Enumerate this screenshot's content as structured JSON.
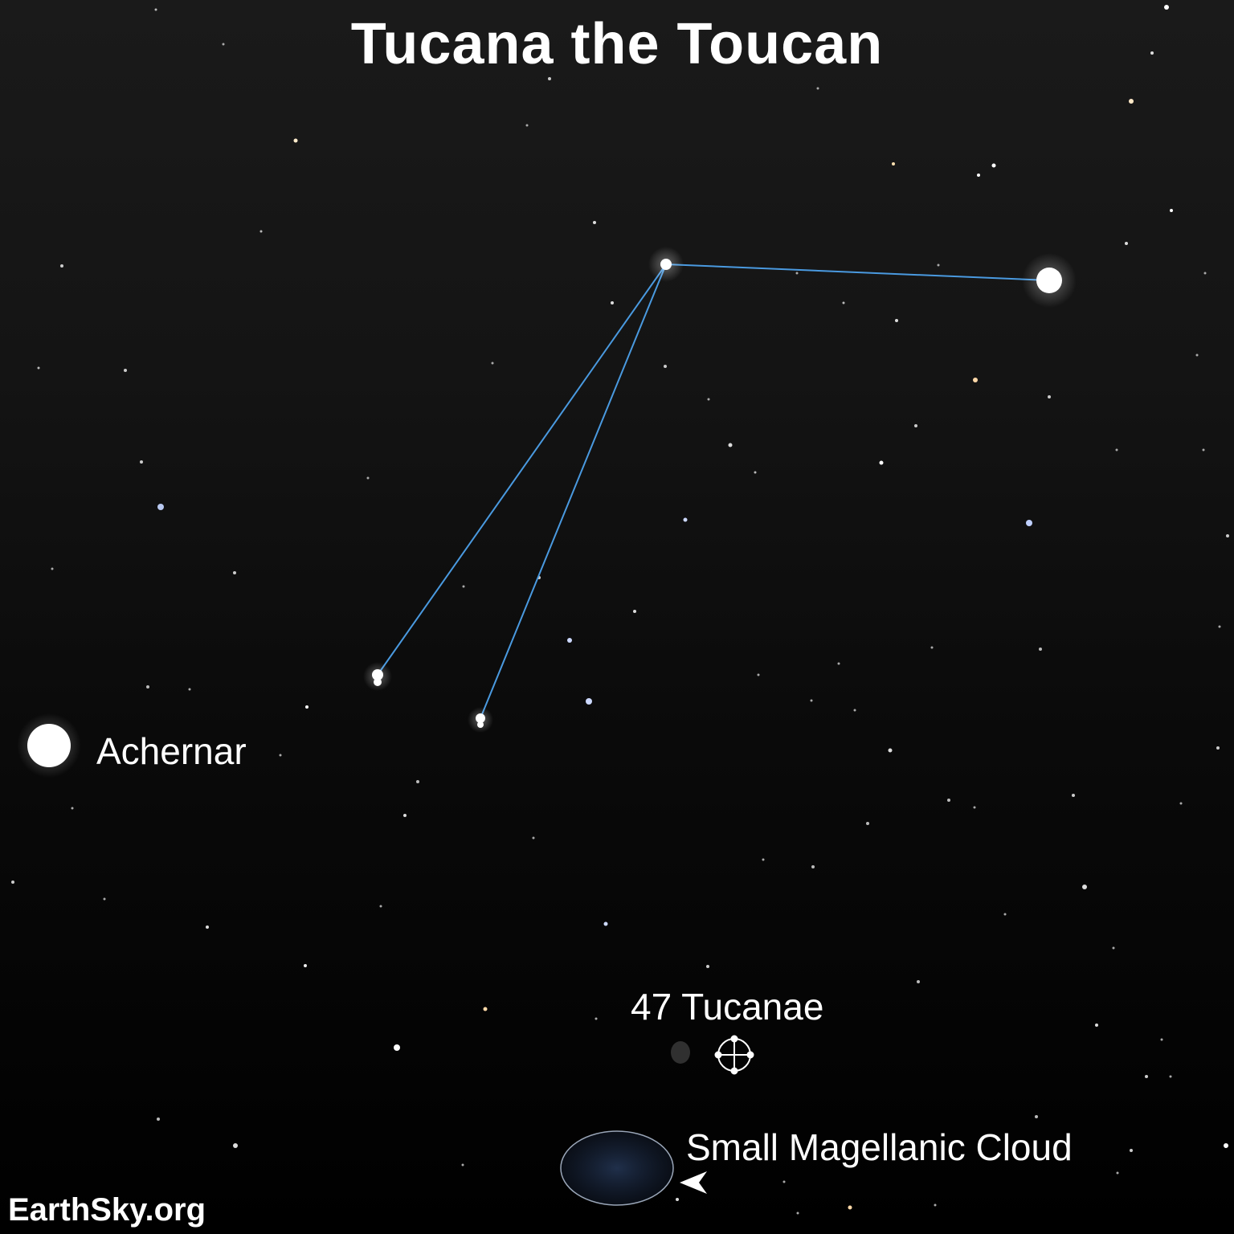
{
  "title": "Tucana the Toucan",
  "labels": {
    "achernar": "Achernar",
    "tuc47": "47 Tucanae",
    "smc": "Small Magellanic Cloud"
  },
  "credit": "EarthSky.org",
  "colors": {
    "background": "#000000",
    "constellation_line": "#4a9ae0",
    "star": "#ffffff",
    "label": "#ffffff"
  },
  "icons": {
    "cluster": "globular-cluster-symbol",
    "galaxy": "galaxy-outline",
    "pointer": "arrow-pointer"
  }
}
